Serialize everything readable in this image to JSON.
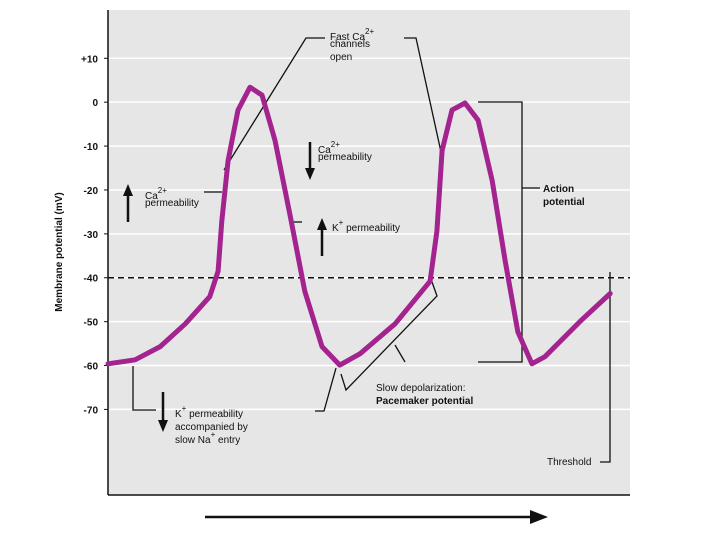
{
  "chart_data": {
    "type": "line",
    "ylabel": "Membrane potential (mV)",
    "ylim": [
      -89.5,
      21
    ],
    "yticks": [
      {
        "value": 10,
        "label": "+10"
      },
      0,
      -10,
      -20,
      -30,
      -40,
      -50,
      -60,
      -70
    ],
    "xlim": [
      0,
      100
    ],
    "grid": true,
    "threshold": -40,
    "series": [
      {
        "color": "#a3238f",
        "x": [
          0,
          5.2,
          10,
          14.8,
          19.5,
          21.1,
          21.8,
          23,
          24.9,
          27.2,
          29.5,
          32,
          34.9,
          37.7,
          41,
          44.4,
          48.3,
          55,
          61.7,
          63,
          64,
          65.9,
          68.4,
          70.9,
          73.6,
          76.1,
          78.5,
          81.2,
          83.7,
          90.4,
          96.2
        ],
        "values": [
          -59.6,
          -58.7,
          -55.7,
          -50.5,
          -44.3,
          -38.5,
          -27.1,
          -13.3,
          -1.8,
          3.4,
          1.6,
          -8.7,
          -25.9,
          -43.1,
          -55.7,
          -59.9,
          -57.3,
          -50.5,
          -40.8,
          -29.4,
          -11,
          -1.8,
          -0.2,
          -4.1,
          -17.9,
          -36.2,
          -52.3,
          -59.6,
          -58,
          -50,
          -43.6
        ]
      }
    ],
    "annotations": [
      {
        "lines": [
          [
            "Fast Ca",
            {
              "sup": "2+"
            }
          ],
          [
            "channels"
          ],
          [
            "open"
          ]
        ]
      },
      {
        "lines": [
          [
            "Ca",
            {
              "sup": "2+"
            }
          ],
          [
            "permeability"
          ]
        ]
      },
      {
        "lines": [
          [
            "Ca",
            {
              "sup": "2+"
            }
          ],
          [
            "permeability"
          ]
        ]
      },
      {
        "lines": [
          [
            "K",
            {
              "sup": "+"
            },
            " permeability"
          ]
        ]
      },
      {
        "lines": [
          [
            "K",
            {
              "sup": "+"
            },
            " permeability"
          ],
          [
            "accompanied by"
          ],
          [
            "slow Na",
            {
              "sup": "+"
            },
            " entry"
          ]
        ]
      },
      {
        "lines": [
          [
            "Slow depolarization:"
          ],
          [
            {
              "bold": "Pacemaker potential"
            }
          ]
        ]
      },
      {
        "lines": [
          [
            {
              "bold": "Action"
            }
          ],
          [
            {
              "bold": "potential"
            }
          ]
        ]
      },
      {
        "lines": [
          [
            "Threshold"
          ]
        ]
      }
    ]
  }
}
